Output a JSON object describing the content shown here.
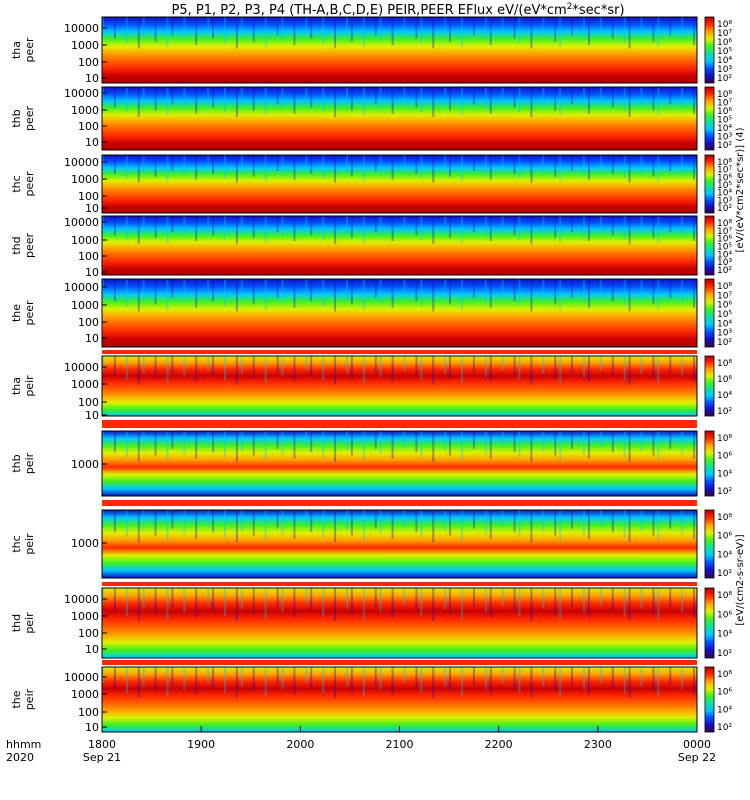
{
  "chart_data": {
    "type": "heatmap",
    "title": "P5, P1, P2, P3, P4 (TH-A,B,C,D,E) PEIR,PEER EFlux eV/(eV*cm2*sec*sr)",
    "title_parts": {
      "pre": "P5, P1, P2, P3, P4 (TH-A,B,C,D,E) PEIR,PEER EFlux eV/(eV*cm",
      "sup": "2",
      "post": "*sec*sr)"
    },
    "x_axis": {
      "label_left_top": "hhmm",
      "label_left_bottom": "2020",
      "ticks": [
        "1800",
        "1900",
        "2000",
        "2100",
        "2200",
        "2300",
        "0000"
      ],
      "date_labels": [
        "Sep 21",
        "Sep 22"
      ],
      "range": [
        "2020-09-21 18:00",
        "2020-09-22 00:00"
      ]
    },
    "colorbar": {
      "scale": "log",
      "colors": [
        "#3c0050",
        "#1010c0",
        "#0050ff",
        "#00c8ff",
        "#10e0a0",
        "#40f020",
        "#e0f000",
        "#ffa000",
        "#ff2800",
        "#b00000"
      ],
      "label_electron": "[eV/(eV*cm2*sec*sr)] (4)",
      "label_ion": "[eV/(cm2-s-sr-eV)]"
    },
    "panels": [
      {
        "id": "tha-peer",
        "probe": "tha",
        "species": "peer",
        "label_1": "tha",
        "label_2": "peer",
        "y_scale": "log",
        "y_ticks": [
          "10000",
          "1000",
          "100",
          "10"
        ],
        "cb_ticks": [
          "10⁸",
          "10⁷",
          "10⁶",
          "10⁵",
          "10⁴",
          "10³",
          "10²"
        ]
      },
      {
        "id": "thb-peer",
        "probe": "thb",
        "species": "peer",
        "label_1": "thb",
        "label_2": "peer",
        "y_scale": "log",
        "y_ticks": [
          "10000",
          "1000",
          "100",
          "10"
        ],
        "cb_ticks": [
          "10⁸",
          "10⁷",
          "10⁶",
          "10⁵",
          "10⁴",
          "10³",
          "10²"
        ]
      },
      {
        "id": "thc-peer",
        "probe": "thc",
        "species": "peer",
        "label_1": "thc",
        "label_2": "peer",
        "y_scale": "log",
        "y_ticks": [
          "10000",
          "1000",
          "100",
          "10"
        ],
        "cb_ticks": [
          "10⁸",
          "10⁷",
          "10⁶",
          "10⁵",
          "10⁴",
          "10³",
          "10²"
        ]
      },
      {
        "id": "thd-peer",
        "probe": "thd",
        "species": "peer",
        "label_1": "thd",
        "label_2": "peer",
        "y_scale": "log",
        "y_ticks": [
          "10000",
          "1000",
          "100",
          "10"
        ],
        "cb_ticks": [
          "10⁸",
          "10⁷",
          "10⁶",
          "10⁵",
          "10⁴",
          "10³",
          "10²"
        ]
      },
      {
        "id": "the-peer",
        "probe": "the",
        "species": "peer",
        "label_1": "the",
        "label_2": "peer",
        "y_scale": "log",
        "y_ticks": [
          "10000",
          "1000",
          "100",
          "10"
        ],
        "cb_ticks": [
          "10⁸",
          "10⁷",
          "10⁶",
          "10⁵",
          "10⁴",
          "10³",
          "10²"
        ]
      },
      {
        "id": "tha-peir",
        "probe": "tha",
        "species": "peir",
        "label_1": "tha",
        "label_2": "peir",
        "y_scale": "log",
        "y_ticks": [
          "10000",
          "1000",
          "100",
          "10"
        ],
        "cb_ticks": [
          "10⁸",
          "10⁶",
          "10⁴",
          "10²"
        ]
      },
      {
        "id": "thb-peir",
        "probe": "thb",
        "species": "peir",
        "label_1": "thb",
        "label_2": "peir",
        "y_scale": "log",
        "y_ticks": [
          "1000"
        ],
        "cb_ticks": [
          "10⁸",
          "10⁶",
          "10⁴",
          "10²"
        ]
      },
      {
        "id": "thc-peir",
        "probe": "thc",
        "species": "peir",
        "label_1": "thc",
        "label_2": "peir",
        "y_scale": "log",
        "y_ticks": [
          "1000"
        ],
        "cb_ticks": [
          "10⁸",
          "10⁶",
          "10⁴",
          "10²"
        ]
      },
      {
        "id": "thd-peir",
        "probe": "thd",
        "species": "peir",
        "label_1": "thd",
        "label_2": "peir",
        "y_scale": "log",
        "y_ticks": [
          "10000",
          "1000",
          "100",
          "10"
        ],
        "cb_ticks": [
          "10⁸",
          "10⁶",
          "10⁴",
          "10²"
        ]
      },
      {
        "id": "the-peir",
        "probe": "the",
        "species": "peir",
        "label_1": "the",
        "label_2": "peir",
        "y_scale": "log",
        "y_ticks": [
          "10000",
          "1000",
          "100",
          "10"
        ],
        "cb_ticks": [
          "10⁸",
          "10⁶",
          "10⁴",
          "10²"
        ]
      }
    ]
  }
}
